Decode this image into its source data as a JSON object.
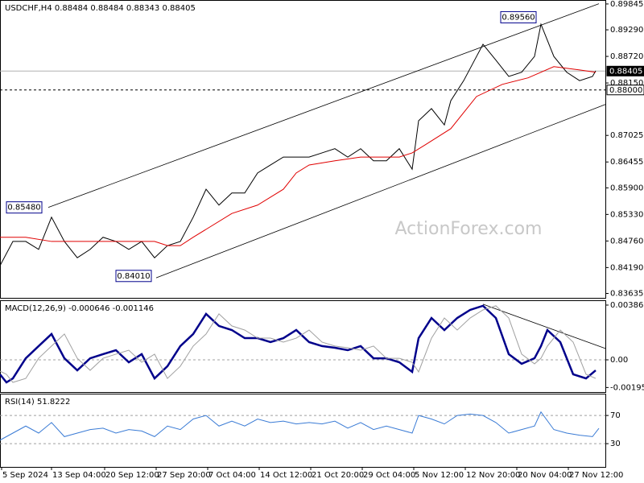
{
  "chart_data": [
    {
      "type": "line",
      "title": "USDCHF,H4 0.88484 0.88484 0.88343 0.88405",
      "watermark": "ActionForex.com",
      "xlim": [
        0,
        376
      ],
      "ylim": [
        0.8354,
        0.8993
      ],
      "yticks": [
        {
          "value": 0.89845,
          "label": "0.89845"
        },
        {
          "value": 0.8929,
          "label": "0.89290"
        },
        {
          "value": 0.8872,
          "label": "0.88720"
        },
        {
          "value": 0.8815,
          "label": "0.88150"
        },
        {
          "value": 0.87025,
          "label": "0.87025"
        },
        {
          "value": 0.86455,
          "label": "0.86455"
        },
        {
          "value": 0.859,
          "label": "0.85900"
        },
        {
          "value": 0.8533,
          "label": "0.85330"
        },
        {
          "value": 0.8476,
          "label": "0.84760"
        },
        {
          "value": 0.8419,
          "label": "0.84190"
        },
        {
          "value": 0.83635,
          "label": "0.83635"
        }
      ],
      "levels": [
        {
          "value": 0.88405,
          "label": "0.88405",
          "style": "solid",
          "color": "#b0b0b0"
        },
        {
          "value": 0.88,
          "label": "0.88000",
          "style": "dashed",
          "color": "#000000"
        }
      ],
      "series": [
        {
          "color": "#000000",
          "x": [
            0,
            8,
            16,
            24,
            32,
            40,
            48,
            56,
            64,
            72,
            80,
            88,
            96,
            104,
            112,
            120,
            128,
            136,
            144,
            152,
            160,
            168,
            176,
            184,
            192,
            200,
            208,
            216,
            224,
            232,
            240,
            248,
            256,
            260,
            268,
            276,
            280,
            288,
            296,
            300,
            308,
            316,
            324,
            332,
            336,
            344,
            352,
            360,
            368,
            370
          ],
          "values": [
            0.8423,
            0.8475,
            0.8475,
            0.8458,
            0.8527,
            0.8475,
            0.844,
            0.8458,
            0.8484,
            0.8475,
            0.8458,
            0.8475,
            0.844,
            0.8466,
            0.8475,
            0.8527,
            0.8587,
            0.8553,
            0.8579,
            0.8579,
            0.8622,
            0.8639,
            0.8656,
            0.8656,
            0.8656,
            0.8665,
            0.8674,
            0.8656,
            0.8674,
            0.8648,
            0.8648,
            0.8674,
            0.863,
            0.8734,
            0.876,
            0.8725,
            0.8777,
            0.882,
            0.8872,
            0.8898,
            0.8864,
            0.8829,
            0.8838,
            0.8872,
            0.8941,
            0.8872,
            0.8838,
            0.882,
            0.8829,
            0.8841
          ]
        },
        {
          "color": "#e00000",
          "x": [
            0,
            16,
            32,
            48,
            64,
            80,
            96,
            104,
            112,
            120,
            128,
            144,
            160,
            176,
            184,
            192,
            208,
            224,
            240,
            248,
            256,
            264,
            280,
            296,
            312,
            328,
            344,
            360,
            370
          ],
          "values": [
            0.8484,
            0.8484,
            0.8475,
            0.8475,
            0.8475,
            0.8475,
            0.8475,
            0.8466,
            0.8466,
            0.8484,
            0.8501,
            0.8535,
            0.8553,
            0.8587,
            0.8622,
            0.8639,
            0.8648,
            0.8656,
            0.8656,
            0.8656,
            0.8665,
            0.8682,
            0.8717,
            0.8786,
            0.8812,
            0.8826,
            0.885,
            0.8843,
            0.8838
          ]
        }
      ],
      "trend_lines": [
        {
          "color": "#000000",
          "points": [
            [
              30,
              0.8548
            ],
            [
              372,
              0.8985
            ]
          ]
        },
        {
          "color": "#000000",
          "points": [
            [
              97,
              0.8397
            ],
            [
              376,
              0.8769
            ]
          ]
        }
      ],
      "annotations": [
        {
          "x": 336,
          "value": 0.8956,
          "label": "0.89560"
        },
        {
          "x": 29,
          "value": 0.8548,
          "label": "0.85480"
        },
        {
          "x": 97,
          "value": 0.8401,
          "label": "0.84010"
        }
      ]
    },
    {
      "type": "line",
      "title": "MACD(12,26,9) -0.000646 -0.001146",
      "xlim": [
        0,
        376
      ],
      "ylim": [
        -0.00227,
        0.0042
      ],
      "yticks": [
        {
          "value": 0.003861,
          "label": "0.003861"
        },
        {
          "value": 0,
          "label": "0.00"
        },
        {
          "value": -0.00195,
          "label": "-0.00195"
        }
      ],
      "levels": [
        {
          "value": 0,
          "style": "dashed",
          "color": "#a0a0a0"
        }
      ],
      "series": [
        {
          "color": "#00008b",
          "x": [
            0,
            4,
            8,
            16,
            24,
            32,
            40,
            48,
            56,
            64,
            72,
            80,
            88,
            96,
            104,
            112,
            120,
            128,
            136,
            144,
            152,
            160,
            168,
            176,
            184,
            192,
            200,
            208,
            216,
            224,
            232,
            240,
            248,
            256,
            260,
            268,
            276,
            284,
            292,
            300,
            308,
            316,
            324,
            332,
            336,
            340,
            348,
            356,
            364,
            370
          ],
          "values": [
            -0.00102,
            -0.00159,
            -0.00131,
            0.00011,
            0.00097,
            0.00182,
            0.00011,
            -0.00074,
            0.00011,
            0.0004,
            0.00068,
            -0.00017,
            0.0004,
            -0.00131,
            -0.00045,
            0.00097,
            0.00182,
            0.00324,
            0.00239,
            0.0021,
            0.00153,
            0.00153,
            0.00125,
            0.00153,
            0.0021,
            0.00125,
            0.00097,
            0.00085,
            0.00068,
            0.00097,
            0.00011,
            0.00011,
            -0.00017,
            -0.00085,
            0.00153,
            0.00295,
            0.0021,
            0.00295,
            0.00352,
            0.00381,
            0.00295,
            0.0004,
            -0.00028,
            0.00011,
            0.00097,
            0.0021,
            0.00125,
            -0.00102,
            -0.00131,
            -0.00074
          ]
        },
        {
          "color": "#a0a0a0",
          "x": [
            0,
            4,
            8,
            16,
            24,
            32,
            40,
            48,
            56,
            64,
            72,
            80,
            88,
            96,
            104,
            112,
            120,
            128,
            136,
            144,
            152,
            160,
            168,
            176,
            184,
            192,
            200,
            208,
            216,
            224,
            232,
            240,
            248,
            256,
            260,
            268,
            276,
            284,
            292,
            300,
            308,
            316,
            324,
            332,
            336,
            340,
            348,
            356,
            364,
            370
          ],
          "values": [
            -0.0008,
            -0.00102,
            -0.00159,
            -0.00131,
            0.00011,
            0.00097,
            0.00182,
            0.00011,
            -0.00074,
            0.00011,
            0.0004,
            0.00068,
            -0.00017,
            0.0004,
            -0.00131,
            -0.00045,
            0.00097,
            0.00182,
            0.00324,
            0.00239,
            0.0021,
            0.00153,
            0.00153,
            0.00125,
            0.00153,
            0.0021,
            0.00125,
            0.00097,
            0.00085,
            0.00068,
            0.00097,
            0.00011,
            0.00011,
            -0.00017,
            -0.00085,
            0.00153,
            0.00295,
            0.0021,
            0.00295,
            0.00352,
            0.00381,
            0.00295,
            0.0004,
            -0.00028,
            0.00011,
            0.00097,
            0.0021,
            0.00125,
            -0.00102,
            -0.00131
          ]
        }
      ],
      "trend_lines": [
        {
          "color": "#000000",
          "points": [
            [
              300,
              0.00392
            ],
            [
              376,
              0.0008
            ]
          ]
        }
      ]
    },
    {
      "type": "line",
      "title": "RSI(14) 51.8222",
      "xlim": [
        0,
        376
      ],
      "ylim": [
        -3,
        101
      ],
      "yticks": [
        70,
        30
      ],
      "grid": true,
      "series": [
        {
          "color": "#3a7bd5",
          "x": [
            0,
            8,
            16,
            24,
            32,
            40,
            48,
            56,
            64,
            72,
            80,
            88,
            96,
            104,
            112,
            120,
            128,
            136,
            144,
            152,
            160,
            168,
            176,
            184,
            192,
            200,
            208,
            216,
            224,
            232,
            240,
            248,
            256,
            260,
            268,
            276,
            284,
            292,
            300,
            308,
            316,
            324,
            332,
            336,
            344,
            352,
            360,
            368,
            372
          ],
          "values": [
            35,
            45,
            55,
            45,
            60,
            40,
            45,
            50,
            52,
            45,
            50,
            48,
            40,
            55,
            50,
            65,
            70,
            55,
            62,
            55,
            65,
            60,
            62,
            58,
            60,
            58,
            62,
            52,
            60,
            50,
            55,
            50,
            45,
            70,
            65,
            58,
            70,
            72,
            70,
            60,
            45,
            50,
            55,
            75,
            50,
            45,
            42,
            40,
            51.8
          ]
        }
      ],
      "xticks": [
        {
          "value": 1,
          "label": "5 Sep 2024"
        },
        {
          "value": 32,
          "label": "13 Sep 04:00"
        },
        {
          "value": 65,
          "label": "20 Sep 12:00"
        },
        {
          "value": 97,
          "label": "27 Sep 20:00"
        },
        {
          "value": 129,
          "label": "7 Oct 04:00"
        },
        {
          "value": 161,
          "label": "14 Oct 12:00"
        },
        {
          "value": 193,
          "label": "21 Oct 20:00"
        },
        {
          "value": 225,
          "label": "29 Oct 04:00"
        },
        {
          "value": 257,
          "label": "5 Nov 12:00"
        },
        {
          "value": 289,
          "label": "12 Nov 20:00"
        },
        {
          "value": 321,
          "label": "20 Nov 04:00"
        },
        {
          "value": 353,
          "label": "27 Nov 12:00"
        }
      ]
    }
  ]
}
